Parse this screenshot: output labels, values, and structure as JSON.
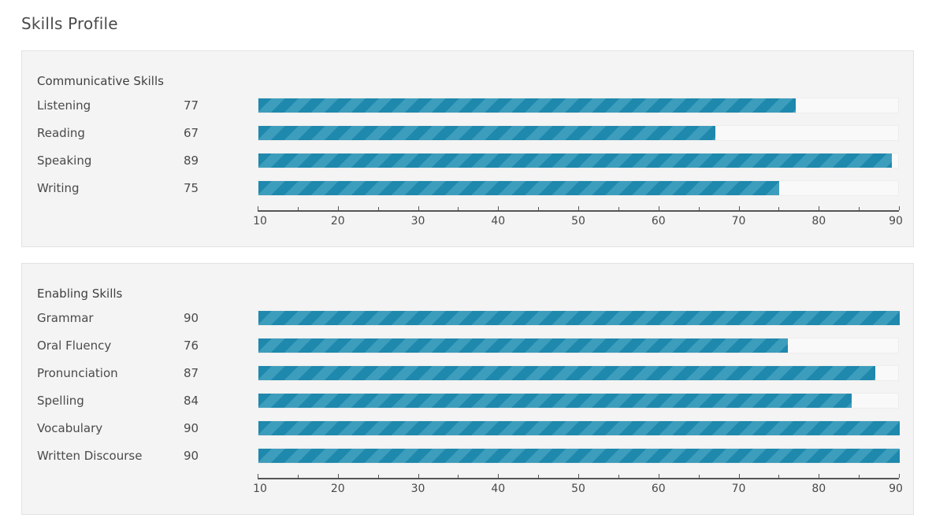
{
  "page": {
    "title": "Skills Profile"
  },
  "colors": {
    "bar": "#1e88ad",
    "bar_stripe": "#3d9dbc",
    "panel": "#f4f4f4"
  },
  "chart_data": [
    {
      "type": "bar",
      "orientation": "horizontal",
      "title": "Communicative Skills",
      "categories": [
        "Listening",
        "Reading",
        "Speaking",
        "Writing"
      ],
      "values": [
        77,
        67,
        89,
        75
      ],
      "xlim": [
        10,
        90
      ],
      "ticks": [
        "10",
        "20",
        "30",
        "40",
        "50",
        "60",
        "70",
        "80",
        "90"
      ],
      "grid": false
    },
    {
      "type": "bar",
      "orientation": "horizontal",
      "title": "Enabling Skills",
      "categories": [
        "Grammar",
        "Oral Fluency",
        "Pronunciation",
        "Spelling",
        "Vocabulary",
        "Written Discourse"
      ],
      "values": [
        90,
        76,
        87,
        84,
        90,
        90
      ],
      "xlim": [
        10,
        90
      ],
      "ticks": [
        "10",
        "20",
        "30",
        "40",
        "50",
        "60",
        "70",
        "80",
        "90"
      ],
      "grid": false
    }
  ]
}
